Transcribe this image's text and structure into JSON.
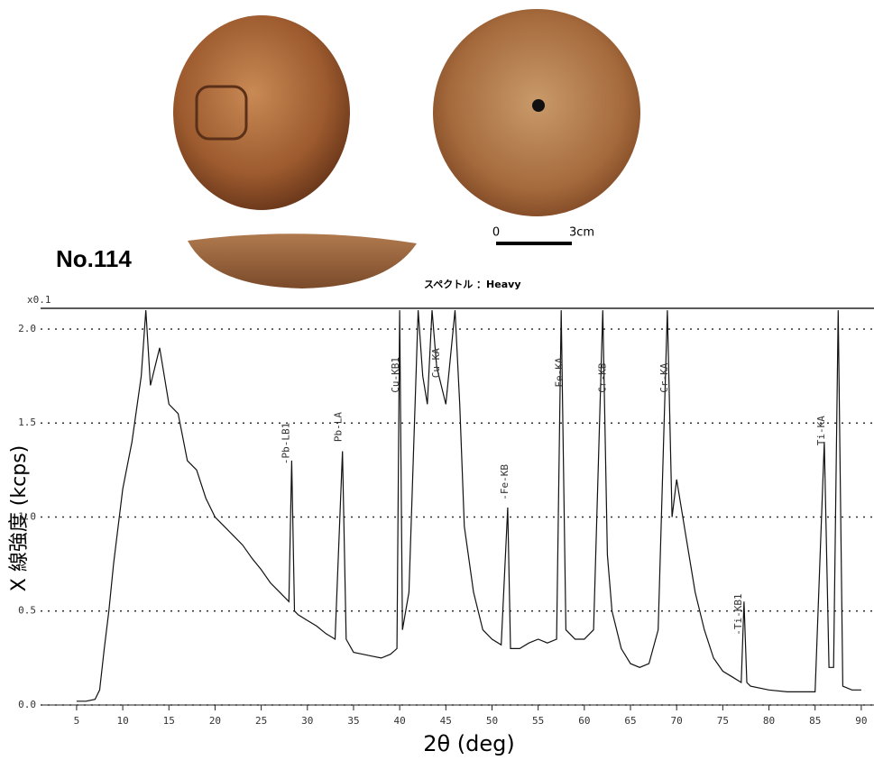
{
  "chart_data": {
    "type": "line",
    "label": "No.114",
    "scale_zero": "0",
    "scale_length": "3cm",
    "spectrum": "スペクトル ：Heavy",
    "y_multiplier": "x0.1",
    "x_label": "2θ (deg)",
    "y_label": "X 線強度 (kcps)",
    "xlim": [
      1.1,
      90.5
    ],
    "ylim": [
      0,
      2.11
    ],
    "xticks": [
      5,
      10,
      15,
      20,
      25,
      30,
      35,
      40,
      45,
      50,
      55,
      60,
      65,
      70,
      75,
      80,
      85,
      90
    ],
    "yticks": [
      {
        "value": 0,
        "label": "0.0"
      },
      0.5,
      {
        "value": 1,
        "label": "1.0"
      },
      1.5,
      {
        "value": 2,
        "label": "2.0"
      }
    ],
    "grid": true,
    "series": [
      {
        "color": "#111111",
        "x": [
          5,
          6,
          7,
          7.5,
          8,
          8.5,
          9,
          10,
          11,
          12,
          12.5,
          13,
          14,
          15,
          16,
          17,
          18,
          19,
          20,
          21,
          22,
          23,
          24,
          25,
          26,
          27,
          28,
          28.3,
          28.6,
          29,
          30,
          31,
          32,
          33,
          33.8,
          34.2,
          35,
          36,
          37,
          38,
          39,
          39.7,
          40,
          40.3,
          41,
          42,
          42.5,
          43,
          43.5,
          44,
          45,
          46,
          46.5,
          47,
          48,
          49,
          50,
          51,
          51.7,
          52,
          53,
          54,
          55,
          56,
          57,
          57.5,
          58,
          59,
          60,
          61,
          62,
          62.5,
          63,
          64,
          65,
          66,
          67,
          68,
          69,
          69.5,
          70,
          71,
          72,
          73,
          74,
          75,
          76,
          77,
          77.3,
          77.6,
          78,
          80,
          82,
          84,
          85,
          86,
          86.5,
          87,
          87.5,
          88,
          89,
          90
        ],
        "values": [
          0.02,
          0.02,
          0.03,
          0.08,
          0.3,
          0.5,
          0.75,
          1.15,
          1.4,
          1.75,
          2.1,
          1.7,
          1.9,
          1.6,
          1.55,
          1.3,
          1.25,
          1.1,
          1.0,
          0.95,
          0.9,
          0.85,
          0.78,
          0.72,
          0.65,
          0.6,
          0.55,
          1.3,
          0.5,
          0.48,
          0.45,
          0.42,
          0.38,
          0.35,
          1.35,
          0.35,
          0.28,
          0.27,
          0.26,
          0.25,
          0.27,
          0.3,
          2.1,
          0.4,
          0.6,
          2.1,
          1.75,
          1.6,
          2.1,
          1.8,
          1.6,
          2.1,
          1.6,
          0.95,
          0.6,
          0.4,
          0.35,
          0.32,
          1.05,
          0.3,
          0.3,
          0.33,
          0.35,
          0.33,
          0.35,
          2.1,
          0.4,
          0.35,
          0.35,
          0.4,
          2.1,
          0.8,
          0.5,
          0.3,
          0.22,
          0.2,
          0.22,
          0.4,
          2.1,
          1.0,
          1.2,
          0.9,
          0.6,
          0.4,
          0.25,
          0.18,
          0.15,
          0.12,
          0.55,
          0.12,
          0.1,
          0.08,
          0.07,
          0.07,
          0.07,
          1.4,
          0.2,
          0.2,
          2.1,
          0.1,
          0.08,
          0.08
        ]
      }
    ],
    "annotations": [
      {
        "text": "-Pb-LB1",
        "x": 28.3,
        "y": 1.28
      },
      {
        "text": "Pb-LA",
        "x": 34,
        "y": 1.4
      },
      {
        "text": "Cu-KB1",
        "x": 40.2,
        "y": 1.66
      },
      {
        "text": "Cu-KA",
        "x": 44.6,
        "y": 1.74
      },
      {
        "text": "-Fe-KB",
        "x": 52,
        "y": 1.09
      },
      {
        "text": "Fe-KA",
        "x": 57.9,
        "y": 1.69
      },
      {
        "text": "Cr-KB",
        "x": 62.6,
        "y": 1.66
      },
      {
        "text": "Cr-KA",
        "x": 69.3,
        "y": 1.66
      },
      {
        "text": "-Ti-KB1",
        "x": 77.3,
        "y": 0.37
      },
      {
        "text": "Ti-KA",
        "x": 86.3,
        "y": 1.38
      }
    ]
  }
}
